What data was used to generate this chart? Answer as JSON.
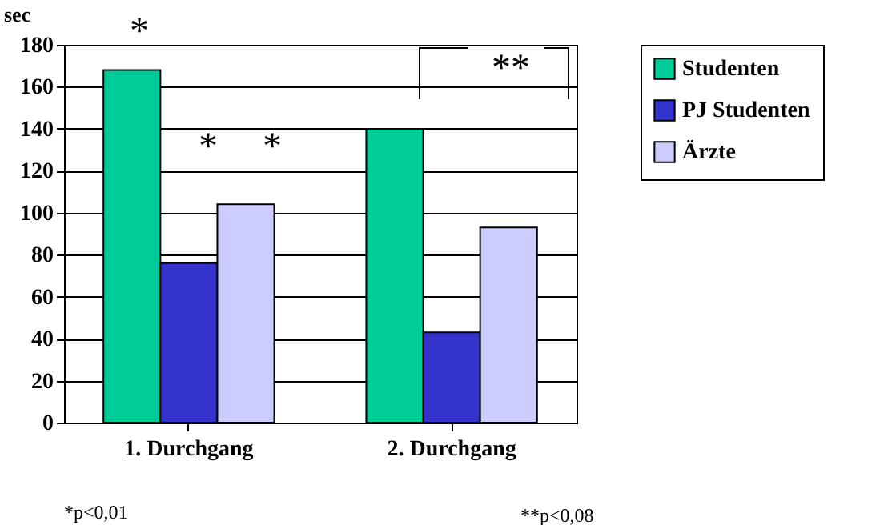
{
  "chart_data": {
    "type": "bar",
    "ylabel": "sec",
    "categories": [
      "1. Durchgang",
      "2. Durchgang"
    ],
    "series": [
      {
        "name": "Studenten",
        "color": "#00cc99",
        "values": [
          168,
          140
        ]
      },
      {
        "name": "PJ Studenten",
        "color": "#3333cc",
        "values": [
          76,
          43
        ]
      },
      {
        "name": "Ärzte",
        "color": "#ccccff",
        "values": [
          104,
          93
        ]
      }
    ],
    "ylim": [
      0,
      180
    ],
    "yticks": [
      0,
      20,
      40,
      60,
      80,
      100,
      120,
      140,
      160,
      180
    ],
    "grid": "y",
    "legend": "right",
    "annotations": [
      "*",
      "*",
      "*",
      "**",
      "*p<0,01",
      "**p<0,08"
    ]
  }
}
